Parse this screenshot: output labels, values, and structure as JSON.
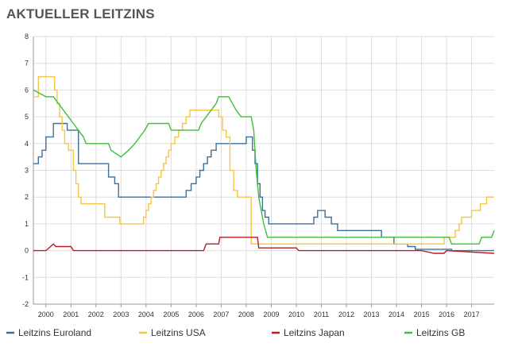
{
  "title": "AKTUELLER LEITZINS",
  "colors": {
    "euro": "#3d6f9c",
    "usa": "#f5c54a",
    "japan": "#b21f24",
    "gb": "#3fbf3a",
    "grid": "#dddddd"
  },
  "chart_data": {
    "type": "line",
    "title": "AKTUELLER LEITZINS",
    "xlabel": "",
    "ylabel": "",
    "xlim": [
      1999.5,
      2017.9
    ],
    "ylim": [
      -2,
      8
    ],
    "x_ticks": [
      "2000",
      "2001",
      "2002",
      "2003",
      "2004",
      "2005",
      "2006",
      "2007",
      "2008",
      "2009",
      "2010",
      "2011",
      "2012",
      "2013",
      "2014",
      "2015",
      "2016",
      "2017"
    ],
    "y_ticks": [
      "-2",
      "-1",
      "0",
      "1",
      "2",
      "3",
      "4",
      "5",
      "6",
      "7",
      "8"
    ],
    "grid": true,
    "legend_position": "bottom",
    "series": [
      {
        "name": "Leitzins Euroland",
        "color_key": "euro",
        "step": true,
        "points": [
          [
            1999.5,
            3.25
          ],
          [
            1999.7,
            3.5
          ],
          [
            1999.85,
            3.75
          ],
          [
            2000.0,
            4.25
          ],
          [
            2000.3,
            4.75
          ],
          [
            2000.85,
            4.5
          ],
          [
            2001.3,
            3.25
          ],
          [
            2002.5,
            2.75
          ],
          [
            2002.75,
            2.5
          ],
          [
            2002.9,
            2.0
          ],
          [
            2005.6,
            2.25
          ],
          [
            2005.8,
            2.5
          ],
          [
            2006.0,
            2.75
          ],
          [
            2006.15,
            3.0
          ],
          [
            2006.3,
            3.25
          ],
          [
            2006.45,
            3.5
          ],
          [
            2006.6,
            3.75
          ],
          [
            2006.8,
            4.0
          ],
          [
            2008.0,
            4.25
          ],
          [
            2008.25,
            3.75
          ],
          [
            2008.35,
            3.25
          ],
          [
            2008.45,
            2.5
          ],
          [
            2008.55,
            2.0
          ],
          [
            2008.65,
            1.5
          ],
          [
            2008.75,
            1.25
          ],
          [
            2008.9,
            1.0
          ],
          [
            2010.7,
            1.25
          ],
          [
            2010.85,
            1.5
          ],
          [
            2011.15,
            1.25
          ],
          [
            2011.4,
            1.0
          ],
          [
            2011.65,
            0.75
          ],
          [
            2013.4,
            0.5
          ],
          [
            2013.9,
            0.25
          ],
          [
            2014.45,
            0.15
          ],
          [
            2014.75,
            0.05
          ],
          [
            2016.2,
            0.0
          ],
          [
            2017.9,
            0.0
          ]
        ]
      },
      {
        "name": "Leitzins USA",
        "color_key": "usa",
        "step": true,
        "points": [
          [
            1999.5,
            5.75
          ],
          [
            1999.7,
            6.5
          ],
          [
            2000.35,
            6.0
          ],
          [
            2000.45,
            5.5
          ],
          [
            2000.55,
            5.0
          ],
          [
            2000.65,
            4.5
          ],
          [
            2000.75,
            4.0
          ],
          [
            2000.9,
            3.75
          ],
          [
            2001.1,
            3.0
          ],
          [
            2001.2,
            2.5
          ],
          [
            2001.3,
            2.0
          ],
          [
            2001.4,
            1.75
          ],
          [
            2002.35,
            1.25
          ],
          [
            2002.95,
            1.0
          ],
          [
            2003.9,
            1.25
          ],
          [
            2004.0,
            1.5
          ],
          [
            2004.1,
            1.75
          ],
          [
            2004.2,
            2.0
          ],
          [
            2004.3,
            2.25
          ],
          [
            2004.4,
            2.5
          ],
          [
            2004.5,
            2.75
          ],
          [
            2004.6,
            3.0
          ],
          [
            2004.7,
            3.25
          ],
          [
            2004.8,
            3.5
          ],
          [
            2004.9,
            3.75
          ],
          [
            2005.0,
            4.0
          ],
          [
            2005.15,
            4.25
          ],
          [
            2005.3,
            4.5
          ],
          [
            2005.45,
            4.75
          ],
          [
            2005.6,
            5.0
          ],
          [
            2005.75,
            5.25
          ],
          [
            2006.9,
            5.0
          ],
          [
            2007.05,
            4.5
          ],
          [
            2007.2,
            4.25
          ],
          [
            2007.35,
            3.0
          ],
          [
            2007.5,
            2.25
          ],
          [
            2007.65,
            2.0
          ],
          [
            2008.2,
            0.25
          ],
          [
            2015.9,
            0.5
          ],
          [
            2016.35,
            0.75
          ],
          [
            2016.5,
            1.0
          ],
          [
            2016.6,
            1.25
          ],
          [
            2017.0,
            1.5
          ],
          [
            2017.35,
            1.75
          ],
          [
            2017.6,
            2.0
          ],
          [
            2017.9,
            2.0
          ]
        ]
      },
      {
        "name": "Leitzins Japan",
        "color_key": "japan",
        "step": false,
        "points": [
          [
            1999.5,
            0.0
          ],
          [
            2000.0,
            0.0
          ],
          [
            2000.3,
            0.25
          ],
          [
            2000.4,
            0.15
          ],
          [
            2001.0,
            0.15
          ],
          [
            2001.1,
            0.0
          ],
          [
            2006.3,
            0.0
          ],
          [
            2006.4,
            0.25
          ],
          [
            2006.9,
            0.25
          ],
          [
            2006.95,
            0.5
          ],
          [
            2008.45,
            0.5
          ],
          [
            2008.5,
            0.1
          ],
          [
            2010.0,
            0.1
          ],
          [
            2010.1,
            0.0
          ],
          [
            2015.0,
            0.0
          ],
          [
            2015.5,
            -0.1
          ],
          [
            2015.9,
            -0.1
          ],
          [
            2016.0,
            0.0
          ],
          [
            2017.9,
            -0.1
          ]
        ]
      },
      {
        "name": "Leitzins GB",
        "color_key": "gb",
        "step": false,
        "points": [
          [
            1999.5,
            6.0
          ],
          [
            2000.0,
            5.75
          ],
          [
            2000.3,
            5.75
          ],
          [
            2000.5,
            5.5
          ],
          [
            2000.7,
            5.25
          ],
          [
            2000.9,
            5.0
          ],
          [
            2001.1,
            4.75
          ],
          [
            2001.3,
            4.5
          ],
          [
            2001.5,
            4.25
          ],
          [
            2001.6,
            4.0
          ],
          [
            2002.5,
            4.0
          ],
          [
            2002.6,
            3.75
          ],
          [
            2003.0,
            3.5
          ],
          [
            2003.3,
            3.75
          ],
          [
            2003.55,
            4.0
          ],
          [
            2003.75,
            4.25
          ],
          [
            2003.95,
            4.5
          ],
          [
            2004.1,
            4.75
          ],
          [
            2004.9,
            4.75
          ],
          [
            2005.0,
            4.5
          ],
          [
            2006.1,
            4.5
          ],
          [
            2006.2,
            4.75
          ],
          [
            2006.4,
            5.0
          ],
          [
            2006.6,
            5.25
          ],
          [
            2006.8,
            5.5
          ],
          [
            2006.9,
            5.75
          ],
          [
            2007.3,
            5.75
          ],
          [
            2007.45,
            5.5
          ],
          [
            2007.6,
            5.25
          ],
          [
            2007.8,
            5.0
          ],
          [
            2008.2,
            5.0
          ],
          [
            2008.3,
            4.5
          ],
          [
            2008.4,
            3.0
          ],
          [
            2008.5,
            2.0
          ],
          [
            2008.6,
            1.5
          ],
          [
            2008.7,
            1.0
          ],
          [
            2008.85,
            0.5
          ],
          [
            2016.1,
            0.5
          ],
          [
            2016.2,
            0.25
          ],
          [
            2017.3,
            0.25
          ],
          [
            2017.4,
            0.5
          ],
          [
            2017.8,
            0.5
          ],
          [
            2017.9,
            0.75
          ]
        ]
      }
    ]
  }
}
